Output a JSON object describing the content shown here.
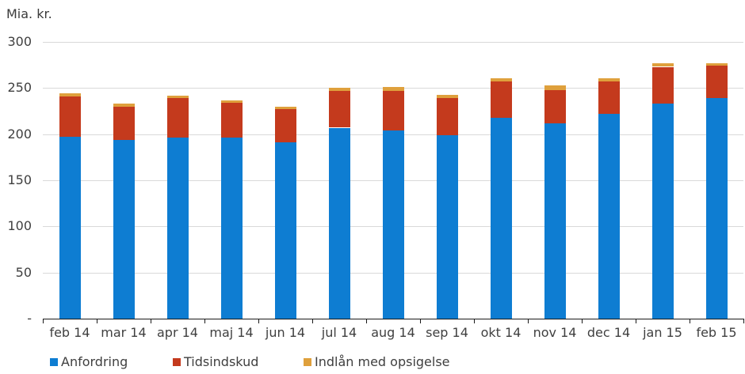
{
  "chart_data": {
    "type": "bar",
    "stacked": true,
    "title": "Mia. kr.",
    "grid": "horizontal",
    "legend_position": "bottom",
    "ylim": [
      0,
      300
    ],
    "y_ticks": [
      {
        "value": 300,
        "label": "300"
      },
      {
        "value": 250,
        "label": "250"
      },
      {
        "value": 200,
        "label": "200"
      },
      {
        "value": 150,
        "label": "150"
      },
      {
        "value": 100,
        "label": "100"
      },
      {
        "value": 50,
        "label": "50"
      },
      {
        "value": 0,
        "label": "-"
      }
    ],
    "categories": [
      "feb 14",
      "mar 14",
      "apr 14",
      "maj 14",
      "jun 14",
      "jul 14",
      "aug 14",
      "sep 14",
      "okt 14",
      "nov 14",
      "dec 14",
      "jan 15",
      "feb 15"
    ],
    "series": [
      {
        "name": "Anfordring",
        "color": "#0e7dd2",
        "values": [
          197,
          194,
          196,
          196,
          191,
          207,
          204,
          199,
          218,
          212,
          222,
          233,
          239
        ]
      },
      {
        "name": "Tidsindskud",
        "color": "#c43a1d",
        "values": [
          44,
          36,
          43,
          38,
          36,
          40,
          43,
          40,
          39,
          36,
          35,
          40,
          35
        ]
      },
      {
        "name": "Indlån med opsigelse",
        "color": "#dfa03c",
        "values": [
          3,
          3,
          3,
          3,
          3,
          3,
          4,
          4,
          4,
          5,
          4,
          4,
          3
        ]
      }
    ],
    "totals": [
      244,
      233,
      242,
      237,
      230,
      250,
      251,
      243,
      261,
      253,
      261,
      277,
      277
    ]
  },
  "style_colors": {
    "grid": "#d9d9d9",
    "axis": "#1a1a1a",
    "text": "#3f3f3f",
    "background": "#ffffff"
  },
  "legend_x_offsets": [
    63,
    218,
    383
  ]
}
